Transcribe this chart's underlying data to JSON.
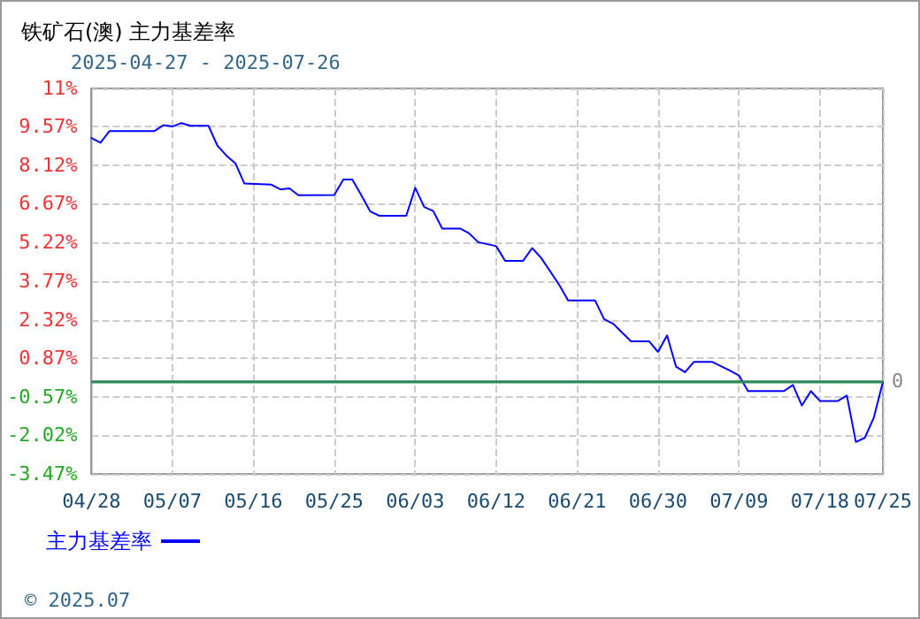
{
  "chart_data": {
    "type": "line",
    "title": "铁矿石(澳) 主力基差率",
    "subtitle": "2025-04-27 - 2025-07-26",
    "x": [
      "2025-04-28",
      "2025-04-29",
      "2025-04-30",
      "2025-05-05",
      "2025-05-06",
      "2025-05-07",
      "2025-05-08",
      "2025-05-09",
      "2025-05-11",
      "2025-05-12",
      "2025-05-13",
      "2025-05-14",
      "2025-05-15",
      "2025-05-18",
      "2025-05-19",
      "2025-05-20",
      "2025-05-21",
      "2025-05-25",
      "2025-05-26",
      "2025-05-27",
      "2025-05-28",
      "2025-05-29",
      "2025-05-30",
      "2025-06-02",
      "2025-06-03",
      "2025-06-04",
      "2025-06-05",
      "2025-06-06",
      "2025-06-08",
      "2025-06-09",
      "2025-06-10",
      "2025-06-12",
      "2025-06-13",
      "2025-06-15",
      "2025-06-16",
      "2025-06-17",
      "2025-06-19",
      "2025-06-20",
      "2025-06-23",
      "2025-06-24",
      "2025-06-25",
      "2025-06-27",
      "2025-06-29",
      "2025-06-30",
      "2025-07-01",
      "2025-07-02",
      "2025-07-03",
      "2025-07-04",
      "2025-07-06",
      "2025-07-08",
      "2025-07-09",
      "2025-07-10",
      "2025-07-14",
      "2025-07-15",
      "2025-07-16",
      "2025-07-17",
      "2025-07-18",
      "2025-07-20",
      "2025-07-21",
      "2025-07-22",
      "2025-07-23",
      "2025-07-24",
      "2025-07-25"
    ],
    "series": [
      {
        "name": "主力基差率",
        "color": "#0000ff",
        "values": [
          9.14,
          8.96,
          9.4,
          9.4,
          9.62,
          9.57,
          9.7,
          9.6,
          9.6,
          8.85,
          8.48,
          8.19,
          7.43,
          7.39,
          7.21,
          7.25,
          6.99,
          7.0,
          7.58,
          7.58,
          6.99,
          6.38,
          6.22,
          6.22,
          7.27,
          6.55,
          6.4,
          5.74,
          5.74,
          5.56,
          5.23,
          5.08,
          4.53,
          4.53,
          5.01,
          4.64,
          3.63,
          3.04,
          3.04,
          2.34,
          2.17,
          1.51,
          1.51,
          1.11,
          1.73,
          0.56,
          0.35,
          0.74,
          0.74,
          0.41,
          0.23,
          -0.36,
          -0.36,
          -0.13,
          -0.9,
          -0.36,
          -0.73,
          -0.73,
          -0.53,
          -2.27,
          -2.11,
          -1.35,
          -0.03
        ]
      }
    ],
    "xlim": [
      "2025-04-28",
      "2025-07-25"
    ],
    "xticks": [
      {
        "value": "2025-04-28",
        "label": "04/28"
      },
      {
        "value": "2025-05-07",
        "label": "05/07"
      },
      {
        "value": "2025-05-16",
        "label": "05/16"
      },
      {
        "value": "2025-05-25",
        "label": "05/25"
      },
      {
        "value": "2025-06-03",
        "label": "06/03"
      },
      {
        "value": "2025-06-12",
        "label": "06/12"
      },
      {
        "value": "2025-06-21",
        "label": "06/21"
      },
      {
        "value": "2025-06-30",
        "label": "06/30"
      },
      {
        "value": "2025-07-09",
        "label": "07/09"
      },
      {
        "value": "2025-07-18",
        "label": "07/18"
      },
      {
        "value": "2025-07-25",
        "label": "07/25"
      }
    ],
    "ylim": [
      -3.47,
      11
    ],
    "yticks": [
      {
        "value": -3.47,
        "label": "-3.47%"
      },
      {
        "value": -2.02,
        "label": "-2.02%"
      },
      {
        "value": -0.57,
        "label": "-0.57%"
      },
      {
        "value": 0.87,
        "label": "0.87%"
      },
      {
        "value": 2.32,
        "label": "2.32%"
      },
      {
        "value": 3.77,
        "label": "3.77%"
      },
      {
        "value": 5.22,
        "label": "5.22%"
      },
      {
        "value": 6.67,
        "label": "6.67%"
      },
      {
        "value": 8.12,
        "label": "8.12%"
      },
      {
        "value": 9.57,
        "label": "9.57%"
      },
      {
        "value": 11,
        "label": "11%"
      }
    ],
    "ref_lines": [
      {
        "axis": "y",
        "value": 0,
        "label": "0",
        "color": "#2e8b57"
      }
    ],
    "grid": true,
    "legend": "bottom left",
    "marker": "none",
    "line_style": "solid",
    "annotations": [
      "© 2025.07"
    ]
  }
}
